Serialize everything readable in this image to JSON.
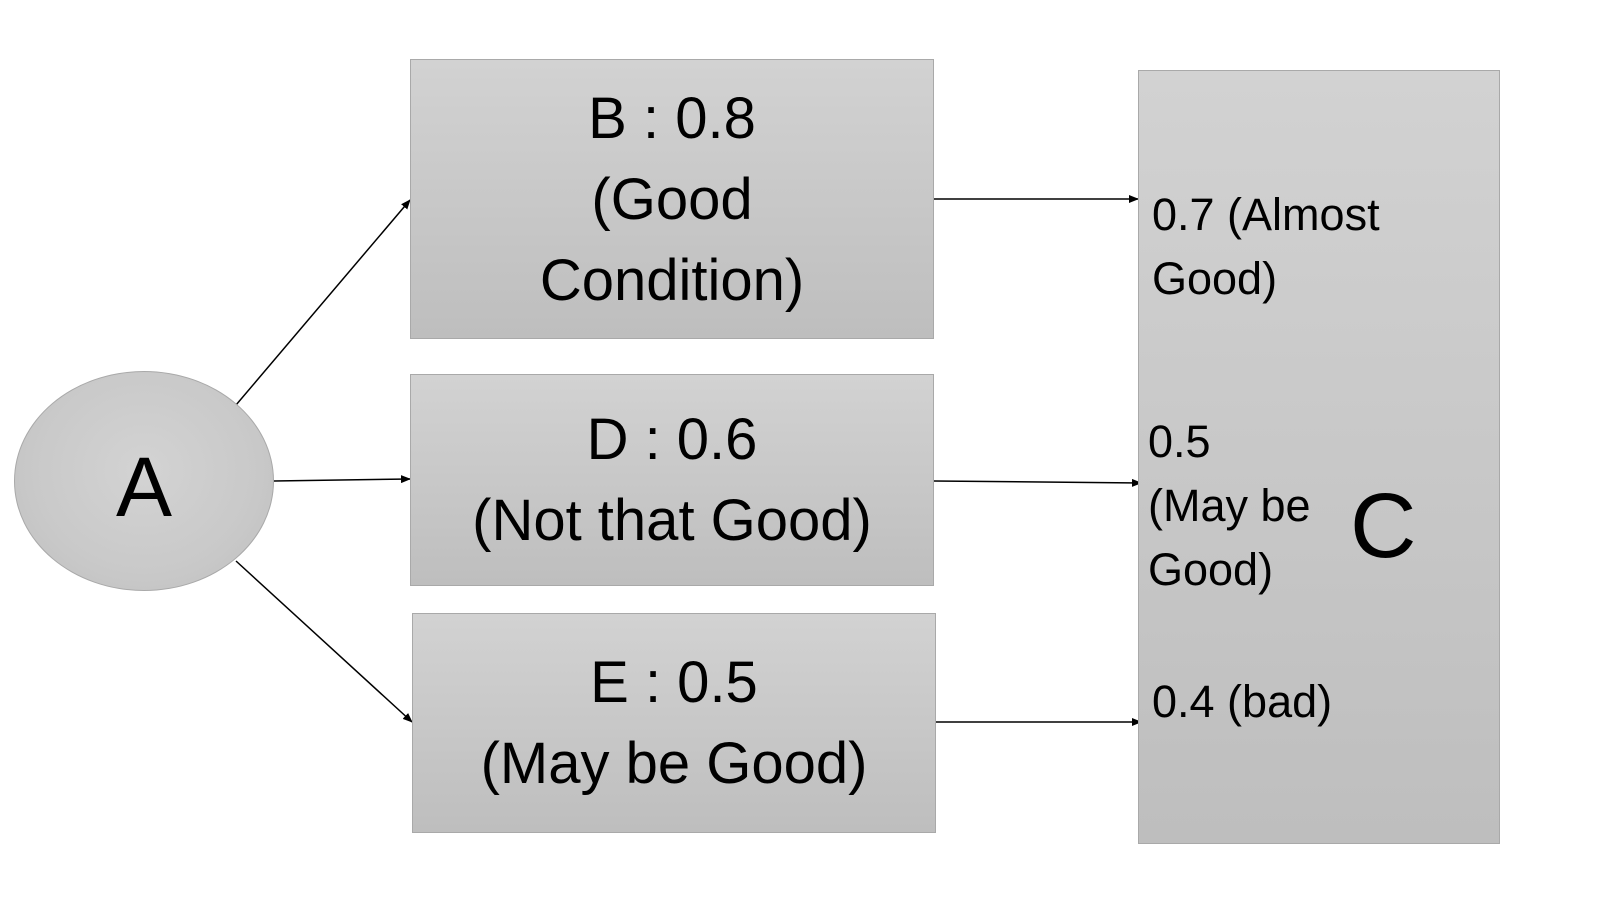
{
  "diagram": {
    "nodes": {
      "a": {
        "label": "A"
      },
      "b": {
        "lines": [
          "B : 0.8",
          "(Good",
          "Condition)"
        ]
      },
      "d": {
        "lines": [
          "D : 0.6",
          "(Not that Good)"
        ]
      },
      "e": {
        "lines": [
          "E : 0.5",
          "(May be Good)"
        ]
      },
      "c": {
        "label": "C",
        "outcomes": [
          {
            "lines": [
              "0.7 (Almost",
              "Good)"
            ]
          },
          {
            "lines": [
              "0.5",
              "(May be",
              "Good)"
            ]
          },
          {
            "lines": [
              "0.4 (bad)"
            ]
          }
        ]
      }
    },
    "edges": [
      {
        "from": "A",
        "to": "B"
      },
      {
        "from": "A",
        "to": "D"
      },
      {
        "from": "A",
        "to": "E"
      },
      {
        "from": "B",
        "to": "C"
      },
      {
        "from": "D",
        "to": "C"
      },
      {
        "from": "E",
        "to": "C"
      }
    ],
    "colors": {
      "node_fill": "#c8c8c8",
      "node_border": "#a9a9a9",
      "edge": "#000000",
      "text": "#000000",
      "background": "#ffffff"
    }
  }
}
